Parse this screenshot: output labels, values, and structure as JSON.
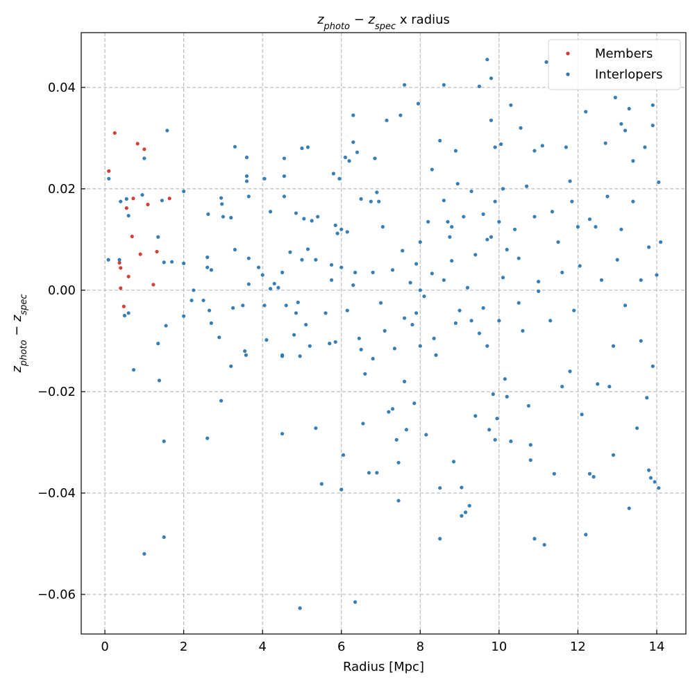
{
  "chart_data": {
    "type": "scatter",
    "title": [
      {
        "text": "z",
        "italic": true
      },
      {
        "text": "photo",
        "italic": true,
        "sub": true
      },
      {
        "text": " − "
      },
      {
        "text": "z",
        "italic": true
      },
      {
        "text": "spec",
        "italic": true,
        "sub": true
      },
      {
        "text": " x radius"
      }
    ],
    "xlabel": [
      {
        "text": "Radius [Mpc]"
      }
    ],
    "ylabel": [
      {
        "text": "z",
        "italic": true
      },
      {
        "text": "photo",
        "italic": true,
        "sub": true
      },
      {
        "text": " − "
      },
      {
        "text": "z",
        "italic": true
      },
      {
        "text": "spec",
        "italic": true,
        "sub": true
      }
    ],
    "xlim": [
      -0.6,
      14.74
    ],
    "ylim": [
      -0.0678,
      0.0508
    ],
    "xticks": [
      0,
      2,
      4,
      6,
      8,
      10,
      12,
      14
    ],
    "yticks": [
      {
        "value": -0.06,
        "label": "−0.06"
      },
      {
        "value": -0.04,
        "label": "−0.04"
      },
      {
        "value": -0.02,
        "label": "−0.02"
      },
      {
        "value": 0,
        "label": "0.00"
      },
      {
        "value": 0.02,
        "label": "0.02"
      },
      {
        "value": 0.04,
        "label": "0.04"
      }
    ],
    "grid": true,
    "legend": "upper right",
    "series": [
      {
        "name": "Members",
        "color": "#d0372c",
        "x": [
          0.1,
          0.25,
          0.83,
          1.0,
          1.09,
          1.64,
          0.72,
          0.55,
          0.69,
          0.9,
          1.32,
          1.23,
          0.37,
          0.4,
          0.6,
          0.4,
          0.48
        ],
        "values": [
          0.0235,
          0.031,
          0.0289,
          0.0278,
          0.0169,
          0.0181,
          0.0181,
          0.0162,
          0.0106,
          0.0071,
          0.0076,
          0.0011,
          0.0054,
          0.0044,
          0.0027,
          0.0004,
          -0.0032
        ]
      },
      {
        "name": "Interlopers",
        "color": "#2a78b2",
        "x": [
          0.1,
          0.09,
          0.37,
          0.4,
          0.55,
          0.6,
          0.5,
          0.6,
          0.73,
          1.0,
          0.95,
          1.0,
          1.35,
          1.35,
          1.38,
          1.45,
          1.5,
          1.5,
          1.5,
          1.55,
          1.58,
          1.7,
          2.0,
          2.0,
          2.0,
          2.2,
          2.25,
          2.5,
          2.6,
          2.6,
          2.6,
          2.62,
          2.65,
          2.7,
          2.7,
          2.9,
          2.95,
          2.95,
          2.97,
          3.0,
          3.2,
          3.2,
          3.25,
          3.3,
          3.3,
          3.5,
          3.55,
          3.58,
          3.6,
          3.6,
          3.6,
          3.65,
          3.65,
          3.65,
          3.9,
          4.0,
          4.05,
          4.05,
          4.1,
          4.2,
          4.2,
          4.3,
          4.4,
          4.5,
          4.5,
          4.5,
          4.55,
          4.55,
          4.55,
          4.5,
          4.6,
          4.7,
          4.8,
          4.85,
          4.85,
          4.95,
          4.95,
          4.9,
          5.0,
          5.0,
          5.05,
          5.1,
          5.15,
          5.15,
          5.2,
          5.25,
          5.35,
          5.35,
          5.4,
          5.5,
          5.6,
          5.7,
          5.75,
          5.75,
          5.8,
          5.85,
          5.85,
          5.95,
          5.9,
          6.0,
          6.0,
          6.0,
          6.05,
          6.1,
          6.15,
          6.15,
          6.2,
          6.3,
          6.3,
          6.3,
          6.35,
          6.35,
          6.4,
          6.45,
          6.5,
          6.5,
          6.55,
          6.6,
          6.7,
          6.75,
          6.8,
          6.85,
          6.9,
          6.9,
          6.95,
          7.05,
          7.1,
          7.15,
          7.2,
          7.3,
          7.35,
          7.4,
          7.45,
          7.45,
          7.5,
          7.55,
          7.6,
          7.6,
          7.6,
          7.65,
          7.75,
          7.8,
          7.85,
          7.9,
          7.95,
          8.0,
          8.0,
          8.1,
          8.15,
          8.2,
          8.3,
          8.35,
          8.4,
          8.5,
          8.5,
          8.5,
          8.6,
          8.6,
          8.7,
          8.75,
          8.8,
          8.85,
          8.9,
          8.95,
          9.0,
          9.05,
          9.05,
          9.1,
          9.15,
          9.25,
          9.3,
          9.4,
          9.5,
          9.5,
          9.6,
          9.7,
          9.7,
          9.75,
          9.8,
          9.8,
          9.85,
          9.9,
          9.9,
          9.95,
          10.0,
          10.05,
          10.1,
          10.1,
          10.15,
          10.2,
          10.3,
          10.3,
          10.5,
          10.55,
          10.7,
          10.75,
          10.8,
          10.8,
          10.9,
          10.9,
          11.0,
          11.1,
          11.15,
          11.2,
          11.35,
          11.4,
          11.5,
          11.6,
          11.7,
          11.8,
          11.85,
          12.0,
          12.1,
          12.2,
          12.2,
          12.3,
          12.4,
          12.5,
          12.7,
          12.8,
          12.9,
          12.95,
          13.1,
          13.2,
          13.3,
          13.3,
          13.4,
          13.5,
          13.7,
          13.75,
          13.8,
          13.85,
          13.9,
          13.95,
          14.05,
          14.05,
          14.1,
          13.9,
          13.9,
          13.8,
          13.6,
          13.2,
          12.6,
          12.9,
          12.3,
          11.9,
          11.3,
          10.6,
          10.4,
          10.2,
          9.9,
          9.8,
          9.6,
          9.4,
          9.2,
          8.9,
          8.6,
          8.3,
          7.0,
          7.3,
          6.8,
          7.9,
          10.5,
          11.0,
          12.05,
          12.45,
          13.0,
          13.4,
          13.6,
          14.0,
          11.6,
          10.9,
          9.7,
          9.3,
          8.8,
          8.0,
          10.0,
          11.8,
          12.75,
          13.1
        ],
        "values": [
          0.022,
          0.006,
          0.006,
          0.0175,
          0.018,
          0.0147,
          -0.005,
          -0.0045,
          -0.0157,
          0.026,
          0.0188,
          -0.052,
          -0.0105,
          0.0105,
          -0.0178,
          0.0177,
          0.0055,
          -0.0298,
          -0.0487,
          -0.007,
          0.0315,
          0.0056,
          0.0195,
          0.0053,
          -0.0051,
          -0.002,
          0.0,
          -0.002,
          0.0045,
          0.0065,
          -0.0292,
          0.015,
          -0.004,
          -0.0065,
          0.004,
          -0.0093,
          -0.0218,
          0.0182,
          0.017,
          0.0145,
          0.0143,
          -0.015,
          -0.0035,
          0.0283,
          0.008,
          -0.003,
          -0.012,
          -0.0128,
          0.0225,
          0.0215,
          0.0262,
          0.0185,
          0.0063,
          0.0012,
          0.0045,
          0.003,
          -0.003,
          0.022,
          -0.0098,
          0.0003,
          0.0155,
          0.0013,
          0.0005,
          -0.0128,
          -0.013,
          0.0035,
          0.026,
          0.0225,
          0.0185,
          -0.0283,
          -0.003,
          0.0075,
          -0.0088,
          0.0152,
          -0.0045,
          -0.0627,
          -0.013,
          -0.0024,
          0.028,
          0.006,
          0.0141,
          -0.0068,
          0.0282,
          0.0081,
          -0.011,
          0.0137,
          0.006,
          -0.0272,
          0.0145,
          -0.0382,
          -0.0045,
          -0.0105,
          0.005,
          0.002,
          0.023,
          0.0128,
          -0.0102,
          0.022,
          0.0112,
          0.012,
          -0.0393,
          0.0045,
          -0.0325,
          0.0262,
          -0.004,
          0.0115,
          0.0255,
          0.0345,
          0.0292,
          0.001,
          -0.0615,
          0.0035,
          0.0272,
          -0.0095,
          0.018,
          -0.0117,
          -0.0263,
          -0.0165,
          -0.036,
          0.0175,
          -0.0135,
          0.026,
          -0.036,
          0.0193,
          0.0175,
          0.0125,
          -0.008,
          0.0335,
          -0.024,
          -0.0234,
          -0.0115,
          -0.0295,
          -0.0415,
          -0.034,
          0.0345,
          0.0078,
          -0.0055,
          -0.018,
          0.0405,
          -0.0275,
          0.0015,
          -0.0068,
          -0.0223,
          0.0052,
          0.0368,
          -0.011,
          0.0095,
          -0.0012,
          -0.0285,
          0.0135,
          0.0238,
          -0.0095,
          -0.0128,
          0.0295,
          -0.039,
          -0.049,
          0.0405,
          0.0177,
          0.0135,
          0.0105,
          0.0058,
          -0.0338,
          0.0275,
          0.021,
          -0.004,
          -0.0389,
          -0.0445,
          0.0145,
          -0.0438,
          -0.0425,
          -0.006,
          -0.0248,
          0.0402,
          -0.0085,
          0.015,
          0.0455,
          0.01,
          -0.0275,
          0.0418,
          0.0335,
          -0.0205,
          0.0282,
          -0.0295,
          -0.0253,
          0.0135,
          0.0288,
          0.02,
          0.0025,
          -0.0175,
          -0.021,
          0.0365,
          -0.0298,
          0.0063,
          0.032,
          0.0205,
          -0.0228,
          -0.0305,
          -0.0335,
          -0.049,
          0.0275,
          0.0017,
          0.0285,
          -0.0502,
          0.045,
          0.0155,
          -0.0362,
          0.0095,
          -0.019,
          0.0282,
          -0.016,
          0.0175,
          0.0125,
          -0.0245,
          0.0352,
          -0.0482,
          -0.0362,
          -0.0368,
          -0.0185,
          0.029,
          -0.019,
          -0.0325,
          0.038,
          0.0328,
          0.0315,
          0.0358,
          -0.043,
          0.0255,
          -0.0272,
          0.0282,
          -0.0212,
          -0.0355,
          -0.037,
          0.0365,
          -0.0378,
          -0.039,
          0.0213,
          0.0095,
          0.0325,
          -0.015,
          0.0085,
          -0.01,
          -0.003,
          0.002,
          -0.011,
          0.014,
          -0.004,
          -0.006,
          -0.008,
          0.012,
          0.008,
          0.0175,
          0.0105,
          -0.0035,
          0.007,
          0.0005,
          -0.0065,
          0.002,
          0.0033,
          -0.0025,
          0.004,
          0.0035,
          -0.0045,
          -0.0025,
          -0.0002,
          0.0048,
          0.0125,
          0.006,
          0.0175,
          0.002,
          0.003,
          0.0035,
          0.0145,
          -0.011,
          0.0195,
          0.0125,
          0.0,
          -0.006,
          0.0215,
          0.0185,
          0.012
        ]
      }
    ]
  }
}
